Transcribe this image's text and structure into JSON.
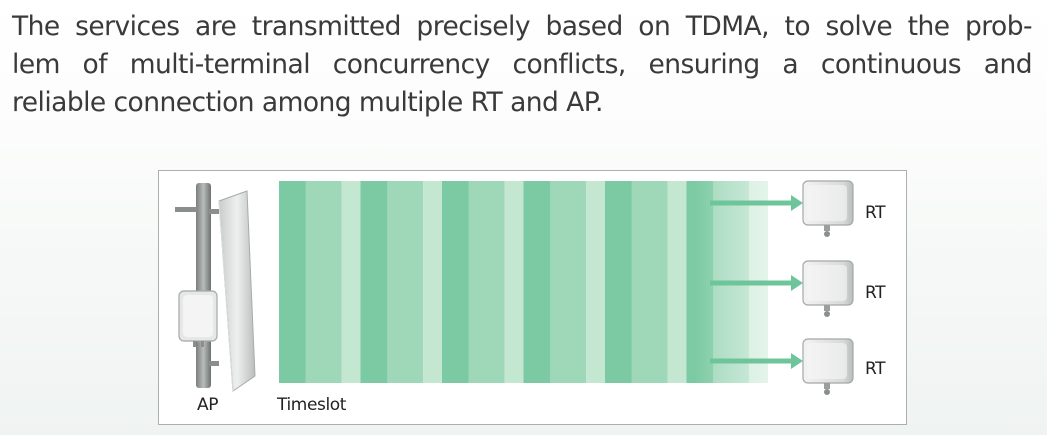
{
  "intro": {
    "lines": [
      "The services are transmitted precisely based on  TDMA,  to  solve  the  prob-",
      "lem  of  multi-terminal  concurrency  conflicts, ensuring  a continuous  and",
      "reliable  connection  among multiple RT and AP."
    ]
  },
  "diagram": {
    "ap_label": "AP",
    "timeslot_label": "Timeslot",
    "terminals": [
      {
        "label": "RT"
      },
      {
        "label": "RT"
      },
      {
        "label": "RT"
      }
    ],
    "timeslot_groups": 6,
    "colors": {
      "stripe_dark": "#7ccaa3",
      "stripe_mid": "#9fd7b9",
      "stripe_light": "#c4e7d2",
      "arrow": "#6fc59b",
      "border": "#a9b0ad"
    }
  }
}
